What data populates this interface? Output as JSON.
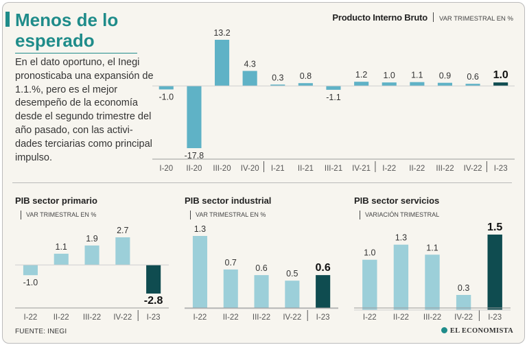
{
  "headline": "Menos de lo esperado",
  "intro": "En el dato oportuno, el Inegi pronosticaba una expansión de 1.1.%, pero es el mejor desempeño de la economía desde el segundo trimestre del año pasado, con las activi- dades terciarias como principal impulso.",
  "main": {
    "title": "Producto Interno Bruto",
    "subtitle": "VAR TRIMESTRAL EN %"
  },
  "panels": {
    "primario": {
      "title": "PIB sector primario",
      "subtitle": "VAR TRIMESTRAL EN %"
    },
    "industrial": {
      "title": "PIB sector industrial",
      "subtitle": "VAR TRIMESTRAL EN %"
    },
    "servicios": {
      "title": "PIB sector servicios",
      "subtitle": "VARIACIÓN TRIMESTRAL"
    }
  },
  "source": "FUENTE: INEGI",
  "brand": "EL ECONOMISTA",
  "colors": {
    "bar": "#5fb2c6",
    "bar_secondary": "#9ccfd9",
    "highlight": "#0f4c50",
    "accent": "#1f8c8a"
  },
  "chart_data": [
    {
      "id": "pib",
      "type": "bar",
      "title": "Producto Interno Bruto",
      "ylabel": "VAR TRIMESTRAL EN %",
      "categories": [
        "I-20",
        "II-20",
        "III-20",
        "IV-20",
        "I-21",
        "II-21",
        "III-21",
        "IV-21",
        "I-22",
        "II-22",
        "III-22",
        "IV-22",
        "I-23"
      ],
      "values": [
        -1.0,
        -17.8,
        13.2,
        4.3,
        0.3,
        0.8,
        -1.1,
        1.2,
        1.0,
        1.1,
        0.9,
        0.6,
        1.0
      ],
      "labels": [
        "-1.0",
        "-17.8",
        "13.2",
        "4.3",
        "0.3",
        "0.8",
        "-1.1",
        "1.2",
        "1.0",
        "1.1",
        "0.9",
        "0.6",
        "1.0"
      ],
      "ylim": [
        -17.8,
        13.2
      ],
      "highlight_last": true
    },
    {
      "id": "primario",
      "type": "bar",
      "title": "PIB sector primario",
      "ylabel": "VAR TRIMESTRAL EN %",
      "categories": [
        "I-22",
        "II-22",
        "III-22",
        "IV-22",
        "I-23"
      ],
      "values": [
        -1.0,
        1.1,
        1.9,
        2.7,
        -2.8
      ],
      "labels": [
        "-1.0",
        "1.1",
        "1.9",
        "2.7",
        "-2.8"
      ],
      "ylim": [
        -2.8,
        2.7
      ],
      "highlight_last": true
    },
    {
      "id": "industrial",
      "type": "bar",
      "title": "PIB sector industrial",
      "ylabel": "VAR TRIMESTRAL EN %",
      "categories": [
        "I-22",
        "II-22",
        "III-22",
        "IV-22",
        "I-23"
      ],
      "values": [
        1.3,
        0.7,
        0.6,
        0.5,
        0.6
      ],
      "labels": [
        "1.3",
        "0.7",
        "0.6",
        "0.5",
        "0.6"
      ],
      "ylim": [
        0,
        1.3
      ],
      "highlight_last": true
    },
    {
      "id": "servicios",
      "type": "bar",
      "title": "PIB sector servicios",
      "ylabel": "VARIACIÓN TRIMESTRAL",
      "categories": [
        "I-22",
        "II-22",
        "III-22",
        "IV-22",
        "I-23"
      ],
      "values": [
        1.0,
        1.3,
        1.1,
        0.3,
        1.5
      ],
      "labels": [
        "1.0",
        "1.3",
        "1.1",
        "0.3",
        "1.5"
      ],
      "ylim": [
        0,
        1.5
      ],
      "highlight_last": true
    }
  ]
}
